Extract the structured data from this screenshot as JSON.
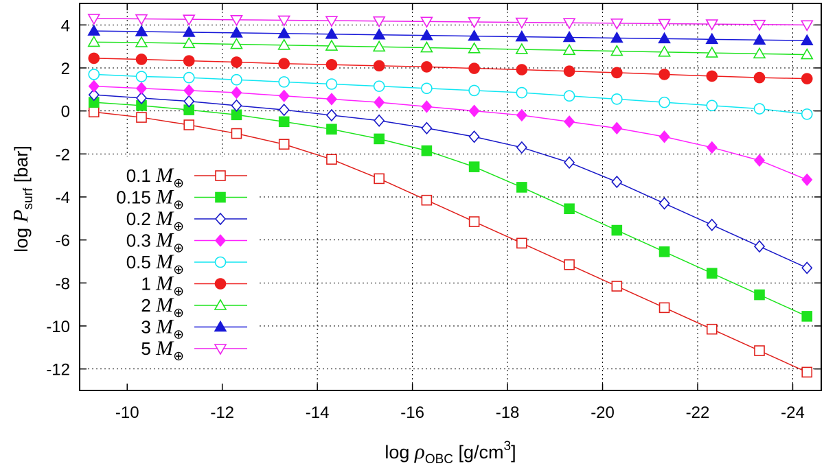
{
  "chart_data": {
    "type": "line",
    "title": "",
    "xlabel": {
      "prefix": "log ",
      "symbol": "ρ",
      "subscript": "OBC",
      "unit": " [g/cm",
      "power": "3",
      "unit_end": "]"
    },
    "ylabel": {
      "prefix": "log ",
      "symbol": "P",
      "subscript": "surf",
      "unit": " [bar]"
    },
    "xlim": [
      -9,
      -24.6
    ],
    "ylim": [
      -13,
      5
    ],
    "x_ticks": [
      -10,
      -12,
      -14,
      -16,
      -18,
      -20,
      -22,
      -24
    ],
    "x_tick_labels": [
      "-10",
      "-12",
      "-14",
      "-16",
      "-18",
      "-20",
      "-22",
      "-24"
    ],
    "y_ticks": [
      4,
      2,
      0,
      -2,
      -4,
      -6,
      -8,
      -10,
      -12
    ],
    "y_tick_labels": [
      "4",
      "2",
      "0",
      "-2",
      "-4",
      "-6",
      "-8",
      "-10",
      "-12"
    ],
    "grid": true,
    "legend_position": "left",
    "legend_symbol": "M",
    "legend_subscript": "⊕",
    "x": [
      -9.3,
      -10.3,
      -11.3,
      -12.3,
      -13.3,
      -14.3,
      -15.3,
      -16.3,
      -17.3,
      -18.3,
      -19.3,
      -20.3,
      -21.3,
      -22.3,
      -23.3,
      -24.3
    ],
    "series": [
      {
        "name": "0.1",
        "color": "#e0201c",
        "marker": "open-square",
        "values": [
          -0.05,
          -0.3,
          -0.65,
          -1.05,
          -1.55,
          -2.25,
          -3.15,
          -4.15,
          -5.15,
          -6.15,
          -7.15,
          -8.15,
          -9.15,
          -10.15,
          -11.15,
          -12.15
        ]
      },
      {
        "name": "0.15",
        "color": "#1ee31e",
        "marker": "filled-square",
        "values": [
          0.4,
          0.25,
          0.05,
          -0.18,
          -0.5,
          -0.85,
          -1.3,
          -1.85,
          -2.6,
          -3.55,
          -4.55,
          -5.55,
          -6.55,
          -7.55,
          -8.55,
          -9.55
        ]
      },
      {
        "name": "0.2",
        "color": "#1818c8",
        "marker": "open-diamond",
        "values": [
          0.75,
          0.6,
          0.45,
          0.25,
          0.05,
          -0.2,
          -0.45,
          -0.8,
          -1.2,
          -1.7,
          -2.4,
          -3.3,
          -4.3,
          -5.3,
          -6.3,
          -7.3
        ]
      },
      {
        "name": "0.3",
        "color": "#ff22ff",
        "marker": "filled-diamond",
        "values": [
          1.15,
          1.05,
          0.95,
          0.85,
          0.7,
          0.55,
          0.4,
          0.2,
          0.0,
          -0.2,
          -0.5,
          -0.8,
          -1.2,
          -1.7,
          -2.3,
          -3.2
        ]
      },
      {
        "name": "0.5",
        "color": "#11e6f2",
        "marker": "open-circle",
        "values": [
          1.7,
          1.6,
          1.55,
          1.45,
          1.35,
          1.25,
          1.15,
          1.05,
          0.95,
          0.85,
          0.7,
          0.55,
          0.4,
          0.25,
          0.1,
          -0.15
        ]
      },
      {
        "name": "1",
        "color": "#ee1d1d",
        "marker": "filled-circle",
        "values": [
          2.45,
          2.4,
          2.33,
          2.27,
          2.2,
          2.15,
          2.1,
          2.05,
          1.98,
          1.92,
          1.85,
          1.78,
          1.7,
          1.62,
          1.55,
          1.5
        ]
      },
      {
        "name": "2",
        "color": "#1ee31e",
        "marker": "open-triangle-up",
        "values": [
          3.2,
          3.18,
          3.14,
          3.1,
          3.06,
          3.02,
          2.98,
          2.94,
          2.9,
          2.86,
          2.82,
          2.78,
          2.74,
          2.7,
          2.66,
          2.62
        ]
      },
      {
        "name": "3",
        "color": "#1818d8",
        "marker": "filled-triangle-up",
        "values": [
          3.72,
          3.69,
          3.66,
          3.63,
          3.6,
          3.57,
          3.54,
          3.51,
          3.48,
          3.45,
          3.42,
          3.39,
          3.36,
          3.33,
          3.3,
          3.27
        ]
      },
      {
        "name": "5",
        "color": "#ee22ee",
        "marker": "open-triangle-down",
        "values": [
          4.3,
          4.28,
          4.26,
          4.24,
          4.22,
          4.2,
          4.18,
          4.16,
          4.14,
          4.12,
          4.1,
          4.08,
          4.06,
          4.04,
          4.02,
          4.0
        ]
      }
    ]
  }
}
